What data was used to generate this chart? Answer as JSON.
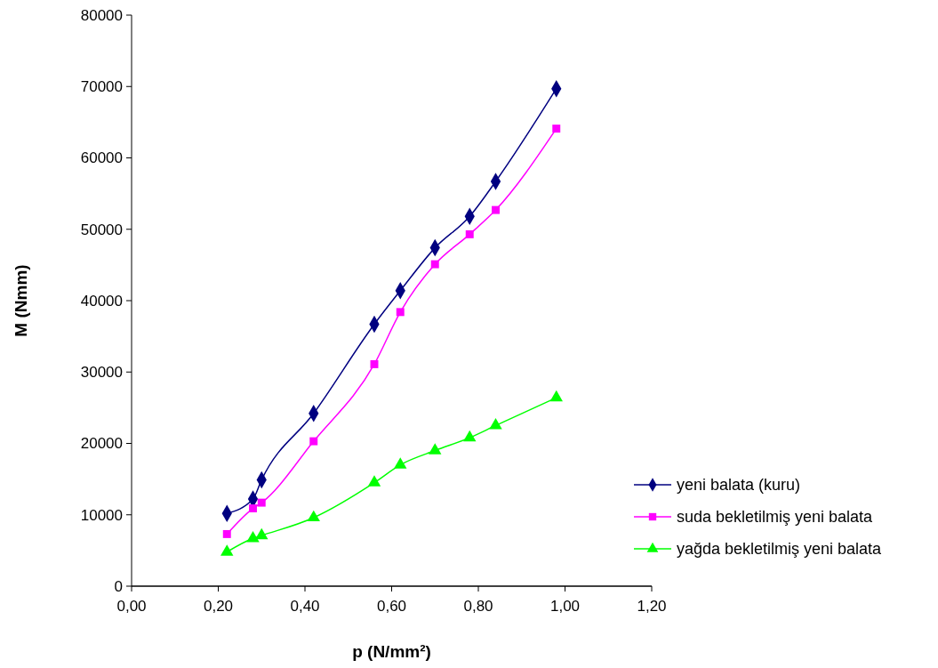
{
  "chart_data": {
    "type": "line",
    "xlabel": "p (N/mm²)",
    "ylabel": "M (Nmm)",
    "x": [
      0.22,
      0.28,
      0.3,
      0.42,
      0.56,
      0.62,
      0.7,
      0.78,
      0.84,
      0.98
    ],
    "series": [
      {
        "name": "yeni balata (kuru)",
        "color": "#000080",
        "marker": "diamond",
        "values": [
          10200,
          12200,
          14900,
          24200,
          36700,
          41400,
          47400,
          51800,
          56700,
          69700
        ]
      },
      {
        "name": "suda bekletilmiş yeni balata",
        "color": "#ff00ff",
        "marker": "square",
        "values": [
          7300,
          10900,
          11700,
          20300,
          31100,
          38400,
          45100,
          49300,
          52700,
          64100
        ]
      },
      {
        "name": "yağda bekletilmiş yeni balata",
        "color": "#00ff00",
        "marker": "triangle",
        "values": [
          4800,
          6700,
          7100,
          9600,
          14500,
          17000,
          19000,
          20800,
          22500,
          26400
        ]
      }
    ],
    "xlim": [
      0,
      1.2
    ],
    "xticks": [
      {
        "value": 0,
        "label": "0,00"
      },
      {
        "value": 0.2,
        "label": "0,20"
      },
      {
        "value": 0.4,
        "label": "0,40"
      },
      {
        "value": 0.6,
        "label": "0,60"
      },
      {
        "value": 0.8,
        "label": "0,80"
      },
      {
        "value": 1,
        "label": "1,00"
      },
      {
        "value": 1.2,
        "label": "1,20"
      }
    ],
    "ylim": [
      0,
      80000
    ],
    "yticks": [
      0,
      10000,
      20000,
      30000,
      40000,
      50000,
      60000,
      70000,
      80000
    ],
    "grid": false,
    "legend": "right"
  }
}
